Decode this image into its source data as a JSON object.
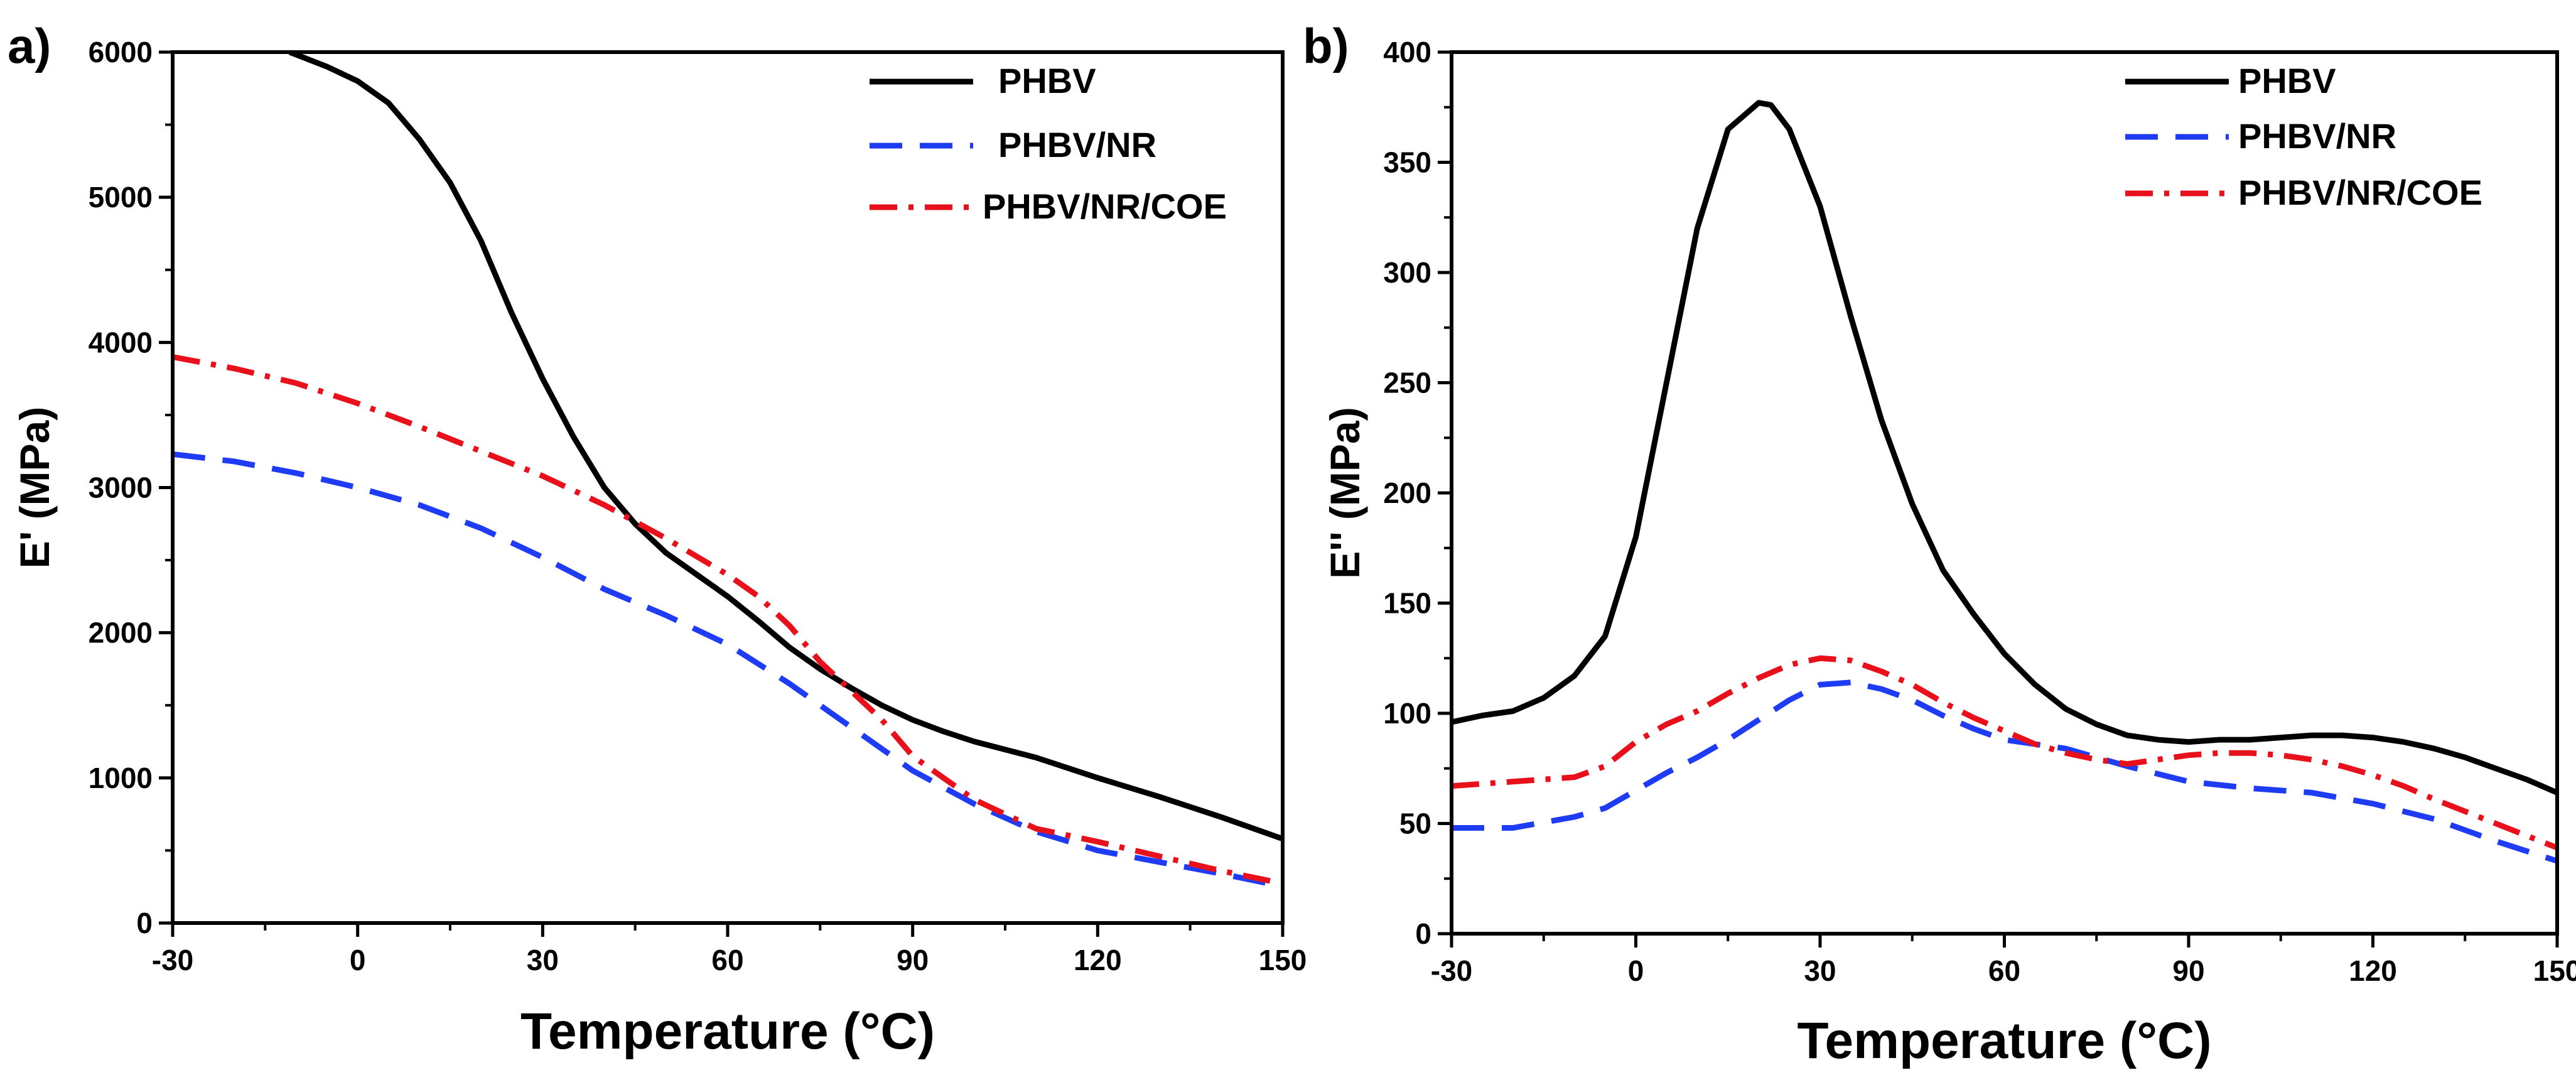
{
  "chart_data": [
    {
      "panel_label": "a)",
      "type": "line",
      "title": "",
      "xlabel": "Temperature (°C)",
      "ylabel": "E' (MPa)",
      "xlim": [
        -30,
        150
      ],
      "ylim": [
        0,
        6000
      ],
      "xticks": [
        -30,
        0,
        30,
        60,
        90,
        120,
        150
      ],
      "yticks": [
        0,
        1000,
        2000,
        3000,
        4000,
        5000,
        6000
      ],
      "legend_position": "top-right",
      "series": [
        {
          "name": "PHBV",
          "color": "#000000",
          "dash": "solid",
          "x": [
            -11,
            -5,
            0,
            5,
            10,
            15,
            20,
            25,
            30,
            35,
            40,
            45,
            50,
            55,
            60,
            65,
            70,
            75,
            80,
            85,
            90,
            95,
            100,
            110,
            120,
            130,
            140,
            150
          ],
          "y": [
            6000,
            5900,
            5800,
            5650,
            5400,
            5100,
            4700,
            4200,
            3750,
            3350,
            3000,
            2750,
            2550,
            2400,
            2250,
            2080,
            1900,
            1750,
            1620,
            1500,
            1400,
            1320,
            1250,
            1140,
            1000,
            870,
            730,
            580
          ]
        },
        {
          "name": "PHBV/NR",
          "color": "#1f3cf5",
          "dash": "dashed",
          "x": [
            -30,
            -20,
            -10,
            0,
            10,
            20,
            30,
            40,
            50,
            60,
            70,
            80,
            90,
            100,
            110,
            120,
            130,
            140,
            148
          ],
          "y": [
            3230,
            3180,
            3100,
            3000,
            2880,
            2720,
            2520,
            2300,
            2120,
            1920,
            1650,
            1350,
            1050,
            820,
            630,
            500,
            420,
            340,
            270
          ]
        },
        {
          "name": "PHBV/NR/COE",
          "color": "#e8101a",
          "dash": "dashdot",
          "x": [
            -30,
            -20,
            -10,
            0,
            10,
            20,
            30,
            40,
            50,
            60,
            65,
            70,
            75,
            80,
            85,
            90,
            100,
            110,
            120,
            130,
            140,
            148
          ],
          "y": [
            3900,
            3820,
            3720,
            3580,
            3420,
            3250,
            3080,
            2880,
            2650,
            2400,
            2250,
            2050,
            1800,
            1600,
            1400,
            1150,
            850,
            650,
            560,
            460,
            360,
            290
          ]
        }
      ]
    },
    {
      "panel_label": "b)",
      "type": "line",
      "title": "",
      "xlabel": "Temperature (°C)",
      "ylabel": "E'' (MPa)",
      "xlim": [
        -30,
        150
      ],
      "ylim": [
        0,
        400
      ],
      "xticks": [
        -30,
        0,
        30,
        60,
        90,
        120,
        150
      ],
      "xtick_labels": [
        "-30",
        "0",
        "30",
        "60",
        "90",
        "120",
        "150"
      ],
      "yticks": [
        0,
        50,
        100,
        150,
        200,
        250,
        300,
        350,
        400
      ],
      "legend_position": "top-right",
      "series": [
        {
          "name": "PHBV",
          "color": "#000000",
          "dash": "solid",
          "x": [
            -30,
            -25,
            -20,
            -15,
            -10,
            -5,
            0,
            5,
            10,
            15,
            20,
            22,
            25,
            30,
            35,
            40,
            45,
            50,
            55,
            60,
            65,
            70,
            75,
            80,
            85,
            90,
            95,
            100,
            105,
            110,
            115,
            120,
            125,
            130,
            135,
            140,
            145,
            150
          ],
          "y": [
            96,
            99,
            101,
            107,
            117,
            135,
            180,
            250,
            320,
            365,
            377,
            376,
            365,
            330,
            280,
            233,
            195,
            165,
            145,
            127,
            113,
            102,
            95,
            90,
            88,
            87,
            88,
            88,
            89,
            90,
            90,
            89,
            87,
            84,
            80,
            75,
            70,
            64
          ]
        },
        {
          "name": "PHBV/NR",
          "color": "#1f3cf5",
          "dash": "dashed",
          "x": [
            -30,
            -20,
            -10,
            -5,
            0,
            5,
            10,
            15,
            20,
            25,
            30,
            35,
            40,
            45,
            50,
            55,
            60,
            65,
            70,
            75,
            80,
            90,
            100,
            110,
            120,
            130,
            140,
            150
          ],
          "y": [
            48,
            48,
            53,
            57,
            65,
            73,
            80,
            88,
            97,
            106,
            113,
            114,
            111,
            106,
            99,
            93,
            88,
            86,
            84,
            80,
            76,
            69,
            66,
            64,
            59,
            52,
            42,
            33
          ]
        },
        {
          "name": "PHBV/NR/COE",
          "color": "#e8101a",
          "dash": "dashdot",
          "x": [
            -30,
            -20,
            -10,
            -5,
            0,
            5,
            10,
            15,
            20,
            25,
            30,
            35,
            40,
            45,
            50,
            55,
            60,
            65,
            70,
            75,
            80,
            85,
            90,
            95,
            100,
            105,
            110,
            115,
            120,
            125,
            130,
            140,
            150
          ],
          "y": [
            67,
            69,
            71,
            76,
            87,
            95,
            101,
            109,
            116,
            122,
            125,
            124,
            119,
            113,
            105,
            98,
            92,
            86,
            82,
            79,
            77,
            79,
            81,
            82,
            82,
            81,
            79,
            76,
            72,
            67,
            61,
            50,
            39
          ]
        }
      ]
    }
  ]
}
